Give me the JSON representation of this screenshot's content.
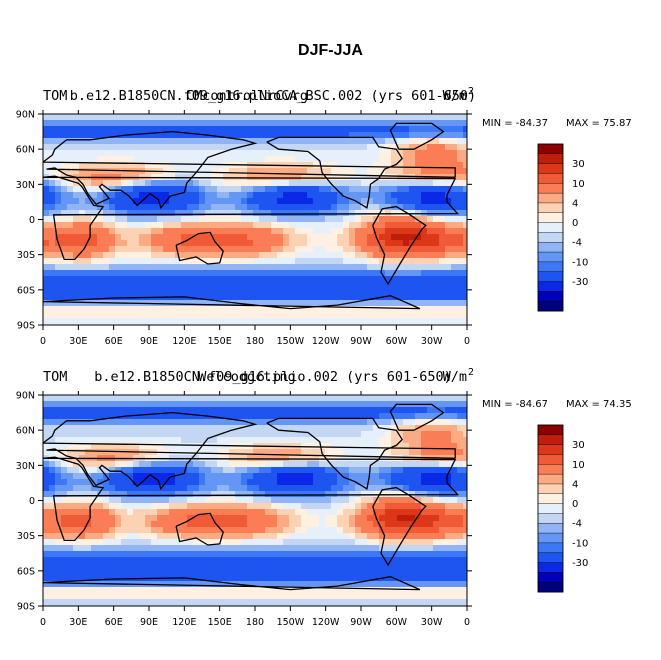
{
  "figure_title": "DJF-JJA",
  "colors": {
    "palette": [
      "#00007a",
      "#0000b8",
      "#0a28e6",
      "#1e55f0",
      "#3c78f5",
      "#6496f5",
      "#91b4f5",
      "#c3d7f5",
      "#e6f0fa",
      "#fff0e1",
      "#fcd2b4",
      "#fcaa82",
      "#fa7d55",
      "#f05a37",
      "#dc3719",
      "#be1e0a",
      "#8c0000"
    ]
  },
  "chart_data": [
    {
      "type": "heatmap",
      "title_left": "TOM",
      "title_center": "b.e12.B1850CN.f09_g16.plioCA_BSC.002 (yrs 601-650)",
      "title_right": "W/m",
      "title_right_sup": "2",
      "overlay_center": "CMcontrolNrCvrg",
      "min_label": "MIN = -84.37",
      "max_label": "MAX =  75.87",
      "min": -84.37,
      "max": 75.87,
      "xlim": [
        0,
        360
      ],
      "ylim": [
        -90,
        90
      ],
      "x_ticks": [
        "0",
        "30E",
        "60E",
        "90E",
        "120E",
        "150E",
        "180",
        "150W",
        "120W",
        "90W",
        "60W",
        "30W",
        "0"
      ],
      "y_ticks": [
        "90N",
        "60N",
        "30N",
        "0",
        "30S",
        "60S",
        "90S"
      ],
      "colorbar_labels": [
        "30",
        "10",
        "4",
        "0",
        "-4",
        "-10",
        "-30"
      ]
    },
    {
      "type": "heatmap",
      "title_left": "TOM",
      "title_center": "b.e12.B1850CN.f09_g16.plio.002 (yrs 601-650)",
      "title_right": "W/m",
      "title_right_sup": "2",
      "overlay_center": "Welcodgcting",
      "min_label": "MIN = -84.67",
      "max_label": "MAX =  74.35",
      "min": -84.67,
      "max": 74.35,
      "xlim": [
        0,
        360
      ],
      "ylim": [
        -90,
        90
      ],
      "x_ticks": [
        "0",
        "30E",
        "60E",
        "90E",
        "120E",
        "150E",
        "180",
        "150W",
        "120W",
        "90W",
        "60W",
        "30W",
        "0"
      ],
      "y_ticks": [
        "90N",
        "60N",
        "30N",
        "0",
        "30S",
        "60S",
        "90S"
      ],
      "colorbar_labels": [
        "30",
        "10",
        "4",
        "0",
        "-4",
        "-10",
        "-30"
      ]
    }
  ]
}
